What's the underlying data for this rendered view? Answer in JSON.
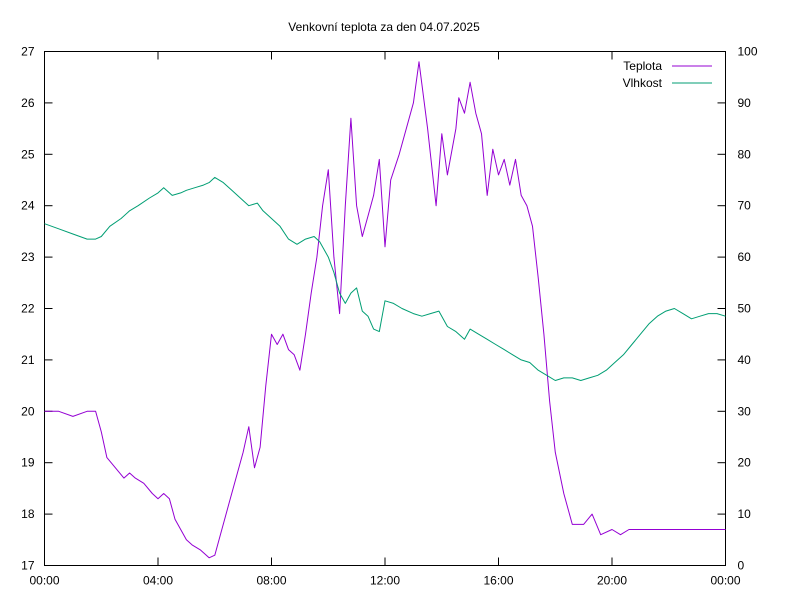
{
  "chart_data": {
    "type": "line",
    "title": "Venkovní teplota za den 04.07.2025",
    "xlabel": "",
    "ylabel": "",
    "y2label": "",
    "x_ticks": [
      "00:00",
      "04:00",
      "08:00",
      "12:00",
      "16:00",
      "20:00",
      "00:00"
    ],
    "x_range_hours": [
      0,
      24
    ],
    "ylim": [
      17,
      27
    ],
    "y_ticks": [
      17,
      18,
      19,
      20,
      21,
      22,
      23,
      24,
      25,
      26,
      27
    ],
    "y2lim": [
      0,
      100
    ],
    "y2_ticks": [
      0,
      10,
      20,
      30,
      40,
      50,
      60,
      70,
      80,
      90,
      100
    ],
    "grid": false,
    "legend_position": "top-right",
    "series": [
      {
        "name": "Teplota",
        "axis": "left",
        "color": "#9400d3",
        "unit": "°C",
        "x": [
          0,
          0.5,
          1,
          1.5,
          1.8,
          2,
          2.2,
          2.5,
          2.8,
          3,
          3.2,
          3.5,
          3.8,
          4,
          4.2,
          4.4,
          4.6,
          4.8,
          5,
          5.2,
          5.5,
          5.8,
          6,
          6.2,
          6.5,
          6.8,
          7,
          7.2,
          7.4,
          7.6,
          7.8,
          8,
          8.2,
          8.4,
          8.6,
          8.8,
          9,
          9.2,
          9.4,
          9.6,
          9.8,
          10,
          10.2,
          10.4,
          10.6,
          10.8,
          11,
          11.2,
          11.4,
          11.6,
          11.8,
          12,
          12.2,
          12.5,
          13,
          13.2,
          13.5,
          13.8,
          14,
          14.2,
          14.5,
          14.6,
          14.8,
          15,
          15.2,
          15.4,
          15.6,
          15.8,
          16,
          16.2,
          16.4,
          16.6,
          16.8,
          17,
          17.2,
          17.4,
          17.6,
          17.8,
          18,
          18.3,
          18.6,
          19,
          19.3,
          19.6,
          20,
          20.3,
          20.6,
          21,
          21.3,
          21.6,
          22,
          22.3,
          22.6,
          23,
          23.3,
          23.6,
          24
        ],
        "y": [
          20.0,
          20.0,
          19.9,
          20.0,
          20.0,
          19.6,
          19.1,
          18.9,
          18.7,
          18.8,
          18.7,
          18.6,
          18.4,
          18.3,
          18.4,
          18.3,
          17.9,
          17.7,
          17.5,
          17.4,
          17.3,
          17.15,
          17.2,
          17.6,
          18.2,
          18.8,
          19.2,
          19.7,
          18.9,
          19.3,
          20.5,
          21.5,
          21.3,
          21.5,
          21.2,
          21.1,
          20.8,
          21.5,
          22.3,
          23.0,
          24.0,
          24.7,
          23.0,
          21.9,
          24.0,
          25.7,
          24.0,
          23.4,
          23.8,
          24.2,
          24.9,
          23.2,
          24.5,
          25.0,
          26.0,
          26.8,
          25.5,
          24.0,
          25.4,
          24.6,
          25.5,
          26.1,
          25.8,
          26.4,
          25.8,
          25.4,
          24.2,
          25.1,
          24.6,
          24.9,
          24.4,
          24.9,
          24.2,
          24.0,
          23.6,
          22.6,
          21.5,
          20.2,
          19.2,
          18.4,
          17.8,
          17.8,
          18.0,
          17.6,
          17.7,
          17.6,
          17.7,
          17.7,
          17.7,
          17.7,
          17.7,
          17.7,
          17.7,
          17.7,
          17.7,
          17.7,
          17.7
        ]
      },
      {
        "name": "Vlhkost",
        "axis": "right",
        "color": "#009e73",
        "unit": "%",
        "x": [
          0,
          0.5,
          1,
          1.5,
          1.8,
          2,
          2.3,
          2.7,
          3,
          3.3,
          3.7,
          4,
          4.2,
          4.5,
          4.8,
          5,
          5.3,
          5.6,
          5.8,
          6,
          6.3,
          6.6,
          6.9,
          7.2,
          7.5,
          7.7,
          8,
          8.3,
          8.6,
          8.9,
          9.2,
          9.5,
          9.7,
          10,
          10.2,
          10.4,
          10.6,
          10.8,
          11,
          11.2,
          11.4,
          11.6,
          11.8,
          12,
          12.3,
          12.6,
          13,
          13.3,
          13.6,
          13.9,
          14.2,
          14.5,
          14.8,
          15,
          15.3,
          15.6,
          15.9,
          16.2,
          16.5,
          16.8,
          17.1,
          17.4,
          17.7,
          18,
          18.3,
          18.6,
          18.9,
          19.2,
          19.5,
          19.8,
          20.1,
          20.4,
          20.7,
          21,
          21.3,
          21.6,
          21.9,
          22.2,
          22.5,
          22.8,
          23.1,
          23.4,
          23.7,
          24
        ],
        "y": [
          66.5,
          65.5,
          64.5,
          63.5,
          63.5,
          64,
          66,
          67.5,
          69,
          70,
          71.5,
          72.5,
          73.5,
          72,
          72.5,
          73,
          73.5,
          74,
          74.5,
          75.5,
          74.5,
          73,
          71.5,
          70,
          70.5,
          69,
          67.5,
          66,
          63.5,
          62.5,
          63.5,
          64,
          63,
          60,
          57,
          53,
          51,
          53,
          54,
          49.5,
          48.5,
          46,
          45.5,
          51.5,
          51,
          50,
          49,
          48.5,
          49,
          49.5,
          46.5,
          45.5,
          44,
          46,
          45,
          44,
          43,
          42,
          41,
          40,
          39.5,
          38,
          37,
          36,
          36.5,
          36.5,
          36,
          36.5,
          37,
          38,
          39.5,
          41,
          43,
          45,
          47,
          48.5,
          49.5,
          50,
          49,
          48,
          48.5,
          49,
          49,
          48.5
        ]
      }
    ]
  }
}
